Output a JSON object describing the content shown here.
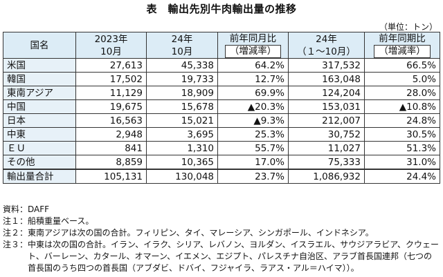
{
  "title": "表　輸出先別牛肉輸出量の推移",
  "unit": "（単位：トン）",
  "headers": {
    "country": "国名",
    "col2023_10": [
      "2023年",
      "10月"
    ],
    "col24_10": [
      "24年",
      "10月"
    ],
    "col_mom": [
      "前年同月比",
      "（増減率）"
    ],
    "col24_ytd": [
      "24年",
      "（１～10月）"
    ],
    "col_ytd_ratio": [
      "前年同期比",
      "（増減率）"
    ]
  },
  "rows": [
    {
      "name": "米国",
      "v2023_10": "27,613",
      "v24_10": "45,338",
      "mom": "64.2%",
      "ytd": "317,532",
      "ytd_ratio": "66.5%"
    },
    {
      "name": "韓国",
      "v2023_10": "17,502",
      "v24_10": "19,733",
      "mom": "12.7%",
      "ytd": "163,048",
      "ytd_ratio": "5.0%"
    },
    {
      "name": "東南アジア",
      "v2023_10": "11,129",
      "v24_10": "18,909",
      "mom": "69.9%",
      "ytd": "124,204",
      "ytd_ratio": "28.0%"
    },
    {
      "name": "中国",
      "v2023_10": "19,675",
      "v24_10": "15,678",
      "mom": "▲20.3%",
      "ytd": "153,031",
      "ytd_ratio": "▲10.8%"
    },
    {
      "name": "日本",
      "v2023_10": "16,563",
      "v24_10": "15,021",
      "mom": "▲9.3%",
      "ytd": "212,007",
      "ytd_ratio": "24.8%"
    },
    {
      "name": "中東",
      "v2023_10": "2,948",
      "v24_10": "3,695",
      "mom": "25.3%",
      "ytd": "30,752",
      "ytd_ratio": "30.5%"
    },
    {
      "name": "ＥＵ",
      "v2023_10": "841",
      "v24_10": "1,310",
      "mom": "55.7%",
      "ytd": "11,027",
      "ytd_ratio": "51.3%"
    },
    {
      "name": "その他",
      "v2023_10": "8,859",
      "v24_10": "10,365",
      "mom": "17.0%",
      "ytd": "75,333",
      "ytd_ratio": "31.0%"
    }
  ],
  "total": {
    "name": "輸出量合計",
    "v2023_10": "105,131",
    "v24_10": "130,048",
    "mom": "23.7%",
    "ytd": "1,086,932",
    "ytd_ratio": "24.4%"
  },
  "notes": [
    {
      "label": "資料：",
      "text": "DAFF"
    },
    {
      "label": "注１：",
      "text": "船積重量ベース。"
    },
    {
      "label": "注２：",
      "text": "東南アジアは次の国の合計。フィリピン、タイ、マレーシア、シンガポール、インドネシア。"
    },
    {
      "label": "注３：",
      "text": "中東は次の国の合計。イラン、イラク、シリア、レバノン、ヨルダン、イスラエル、サウジアラビア、クウェート、バーレーン、カタール、オマーン、イエメン、エジプト、パレスチナ自治区、アラブ首長国連邦（七つの首長国のうち四つの首長国（アブダビ、ドバイ、フジャイラ、ラアス・アル＝ハイマ））。"
    }
  ]
}
